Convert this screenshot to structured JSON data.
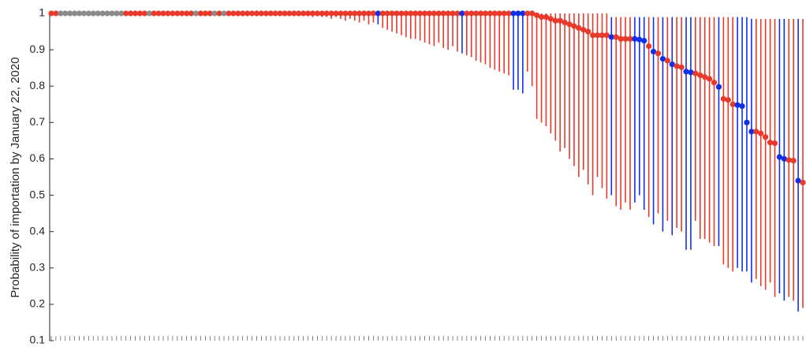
{
  "chart_data": {
    "type": "errorbar",
    "ylabel": "Probability of importation by January 22, 2020",
    "ylim": [
      0.1,
      1
    ],
    "yticks": [
      0.1,
      0.2,
      0.3,
      0.4,
      0.5,
      0.6,
      0.7,
      0.8,
      0.9,
      1
    ],
    "categories": [
      null,
      null,
      null,
      null,
      null,
      null,
      null,
      null,
      null,
      null,
      null,
      null,
      null,
      null,
      null,
      null,
      null,
      null,
      null,
      null,
      null,
      null,
      null,
      null,
      null,
      null,
      null,
      null,
      null,
      null,
      null,
      null,
      null,
      null,
      null,
      null,
      null,
      null,
      null,
      null,
      null,
      null,
      null,
      null,
      null,
      null,
      null,
      null,
      null,
      null,
      null,
      null,
      null,
      null,
      null,
      null,
      null,
      null,
      null,
      null,
      null,
      null,
      null,
      null,
      null,
      null,
      null,
      null,
      null,
      null,
      null,
      null,
      null,
      null,
      null,
      null,
      null,
      null,
      null,
      null,
      null,
      null,
      null,
      null,
      null,
      null,
      null,
      null,
      null,
      null,
      null,
      null,
      null,
      null,
      null,
      null,
      null,
      null,
      null,
      null,
      null,
      null,
      null,
      null,
      null,
      null,
      null,
      null,
      null,
      null,
      null,
      null,
      null,
      null,
      null,
      null,
      null,
      null,
      null,
      null,
      null,
      null,
      null,
      null,
      null,
      null,
      null,
      null,
      null,
      null,
      null,
      null,
      null,
      null,
      null,
      null,
      null,
      null,
      null,
      null,
      null,
      null,
      null,
      null,
      null,
      null,
      null,
      null,
      null,
      null,
      null,
      null,
      null,
      null,
      null,
      null,
      null,
      null,
      null,
      null,
      null,
      null
    ],
    "series": [
      {
        "values": [
          1,
          1,
          1,
          1,
          1,
          1,
          1,
          1,
          1,
          1,
          1,
          1,
          1,
          1,
          1,
          1,
          1,
          1,
          1,
          1,
          1,
          1,
          1,
          1,
          1,
          1,
          1,
          1,
          1,
          1,
          1,
          1,
          1,
          1,
          1,
          1,
          1,
          1,
          1,
          1,
          1,
          1,
          1,
          1,
          1,
          1,
          1,
          1,
          1,
          1,
          1,
          1,
          1,
          1,
          1,
          1,
          1,
          1,
          1,
          1,
          1,
          1,
          1,
          1,
          1,
          1,
          1,
          1,
          1,
          1,
          1,
          1,
          1,
          1,
          1,
          1,
          1,
          1,
          1,
          1,
          1,
          1,
          1,
          1,
          1,
          1,
          1,
          1,
          1,
          1,
          1,
          1,
          1,
          1,
          1,
          1,
          1,
          1,
          1,
          1,
          1,
          1,
          1,
          1,
          0.995,
          0.99,
          0.99,
          0.985,
          0.98,
          0.98,
          0.975,
          0.97,
          0.965,
          0.96,
          0.955,
          0.95,
          0.94,
          0.94,
          0.94,
          0.94,
          0.935,
          0.935,
          0.93,
          0.93,
          0.93,
          0.93,
          0.928,
          0.925,
          0.91,
          0.895,
          0.89,
          0.875,
          0.87,
          0.86,
          0.855,
          0.852,
          0.84,
          0.838,
          0.835,
          0.83,
          0.825,
          0.82,
          0.81,
          0.798,
          0.765,
          0.762,
          0.75,
          0.748,
          0.745,
          0.7,
          0.675,
          0.675,
          0.67,
          0.66,
          0.645,
          0.643,
          0.605,
          0.6,
          0.597,
          0.595,
          0.54,
          0.535
        ],
        "lower": [
          1,
          1,
          1,
          1,
          1,
          1,
          1,
          1,
          1,
          1,
          1,
          1,
          1,
          1,
          1,
          1,
          1,
          1,
          1,
          1,
          1,
          1,
          1,
          1,
          1,
          1,
          1,
          1,
          1,
          1,
          1,
          1,
          1,
          1,
          1,
          1,
          1,
          1,
          1,
          1,
          1,
          1,
          1,
          1,
          1,
          1,
          1,
          1,
          1,
          1,
          1,
          1,
          1,
          1,
          0.995,
          0.995,
          0.99,
          0.995,
          0.99,
          0.99,
          0.985,
          0.99,
          0.985,
          0.98,
          0.985,
          0.98,
          0.975,
          0.98,
          0.97,
          0.975,
          0.97,
          0.96,
          0.955,
          0.95,
          0.945,
          0.94,
          0.935,
          0.93,
          0.93,
          0.925,
          0.92,
          0.915,
          0.91,
          0.92,
          0.905,
          0.9,
          0.91,
          0.895,
          0.89,
          0.885,
          0.88,
          0.87,
          0.865,
          0.86,
          0.85,
          0.845,
          0.84,
          0.835,
          0.83,
          0.79,
          0.79,
          0.78,
          0.84,
          0.8,
          0.71,
          0.7,
          0.69,
          0.67,
          0.65,
          0.62,
          0.63,
          0.6,
          0.58,
          0.55,
          0.57,
          0.53,
          0.5,
          0.55,
          0.52,
          0.49,
          0.5,
          0.47,
          0.46,
          0.48,
          0.46,
          0.48,
          0.5,
          0.46,
          0.44,
          0.42,
          0.45,
          0.4,
          0.43,
          0.39,
          0.41,
          0.4,
          0.35,
          0.35,
          0.43,
          0.38,
          0.38,
          0.37,
          0.36,
          0.36,
          0.31,
          0.3,
          0.29,
          0.3,
          0.29,
          0.29,
          0.26,
          0.27,
          0.25,
          0.24,
          0.26,
          0.22,
          0.23,
          0.21,
          0.22,
          0.21,
          0.18,
          0.19
        ],
        "upper": [
          1,
          1,
          1,
          1,
          1,
          1,
          1,
          1,
          1,
          1,
          1,
          1,
          1,
          1,
          1,
          1,
          1,
          1,
          1,
          1,
          1,
          1,
          1,
          1,
          1,
          1,
          1,
          1,
          1,
          1,
          1,
          1,
          1,
          1,
          1,
          1,
          1,
          1,
          1,
          1,
          1,
          1,
          1,
          1,
          1,
          1,
          1,
          1,
          1,
          1,
          1,
          1,
          1,
          1,
          1,
          1,
          1,
          1,
          1,
          1,
          1,
          1,
          1,
          1,
          1,
          1,
          1,
          1,
          1,
          1,
          1,
          1,
          1,
          1,
          1,
          1,
          1,
          1,
          1,
          1,
          1,
          1,
          1,
          1,
          1,
          1,
          1,
          1,
          1,
          1,
          1,
          1,
          1,
          1,
          1,
          1,
          1,
          1,
          1,
          1,
          1,
          1,
          1,
          1,
          1,
          1,
          1,
          1,
          1,
          1,
          1,
          1,
          1,
          1,
          1,
          1,
          1,
          1,
          1,
          1,
          0.99,
          0.99,
          0.99,
          0.99,
          0.99,
          0.99,
          0.99,
          0.99,
          0.99,
          0.99,
          0.99,
          0.99,
          0.99,
          0.99,
          0.99,
          0.99,
          0.99,
          0.99,
          0.99,
          0.99,
          0.99,
          0.99,
          0.99,
          0.99,
          0.99,
          0.99,
          0.99,
          0.99,
          0.99,
          0.99,
          0.985,
          0.985,
          0.985,
          0.985,
          0.985,
          0.985,
          0.985,
          0.985,
          0.985,
          0.985,
          0.985,
          0.985
        ],
        "colors": [
          "#e8392b",
          "#e8392b",
          "#8a8a8a",
          "#8a8a8a",
          "#8a8a8a",
          "#8a8a8a",
          "#8a8a8a",
          "#8a8a8a",
          "#8a8a8a",
          "#8a8a8a",
          "#8a8a8a",
          "#8a8a8a",
          "#8a8a8a",
          "#8a8a8a",
          "#8a8a8a",
          "#8a8a8a",
          "#e8392b",
          "#e8392b",
          "#e8392b",
          "#e8392b",
          "#e8392b",
          "#8a8a8a",
          "#e8392b",
          "#e8392b",
          "#e8392b",
          "#e8392b",
          "#e8392b",
          "#e8392b",
          "#e8392b",
          "#e8392b",
          "#e8392b",
          "#8a8a8a",
          "#e8392b",
          "#e8392b",
          "#e8392b",
          "#8a8a8a",
          "#e8392b",
          "#8a8a8a",
          "#e8392b",
          "#e8392b",
          "#e8392b",
          "#e8392b",
          "#e8392b",
          "#e8392b",
          "#e8392b",
          "#e8392b",
          "#e8392b",
          "#e8392b",
          "#e8392b",
          "#e8392b",
          "#e8392b",
          "#e8392b",
          "#e8392b",
          "#e8392b",
          "#e8392b",
          "#e8392b",
          "#e8392b",
          "#e8392b",
          "#e8392b",
          "#e8392b",
          "#e8392b",
          "#e8392b",
          "#e8392b",
          "#e8392b",
          "#e8392b",
          "#e8392b",
          "#e8392b",
          "#e8392b",
          "#e8392b",
          "#e8392b",
          "#1030e8",
          "#e8392b",
          "#e8392b",
          "#e8392b",
          "#e8392b",
          "#e8392b",
          "#e8392b",
          "#e8392b",
          "#e8392b",
          "#e8392b",
          "#e8392b",
          "#e8392b",
          "#e8392b",
          "#e8392b",
          "#e8392b",
          "#e8392b",
          "#e8392b",
          "#e8392b",
          "#1030e8",
          "#e8392b",
          "#e8392b",
          "#e8392b",
          "#e8392b",
          "#e8392b",
          "#e8392b",
          "#e8392b",
          "#e8392b",
          "#e8392b",
          "#e8392b",
          "#1030e8",
          "#1030e8",
          "#1030e8",
          "#e8392b",
          "#e8392b",
          "#e8392b",
          "#e8392b",
          "#e8392b",
          "#e8392b",
          "#e8392b",
          "#e8392b",
          "#e8392b",
          "#e8392b",
          "#e8392b",
          "#e8392b",
          "#e8392b",
          "#e8392b",
          "#e8392b",
          "#e8392b",
          "#e8392b",
          "#e8392b",
          "#1030e8",
          "#e8392b",
          "#e8392b",
          "#e8392b",
          "#e8392b",
          "#1030e8",
          "#1030e8",
          "#1030e8",
          "#e8392b",
          "#1030e8",
          "#e8392b",
          "#1030e8",
          "#e8392b",
          "#1030e8",
          "#e8392b",
          "#e8392b",
          "#1030e8",
          "#1030e8",
          "#e8392b",
          "#e8392b",
          "#e8392b",
          "#e8392b",
          "#e8392b",
          "#1030e8",
          "#e8392b",
          "#e8392b",
          "#e8392b",
          "#1030e8",
          "#1030e8",
          "#1030e8",
          "#1030e8",
          "#e8392b",
          "#e8392b",
          "#e8392b",
          "#e8392b",
          "#e8392b",
          "#1030e8",
          "#1030e8",
          "#e8392b",
          "#e8392b",
          "#1030e8",
          "#e8392b"
        ]
      }
    ]
  }
}
